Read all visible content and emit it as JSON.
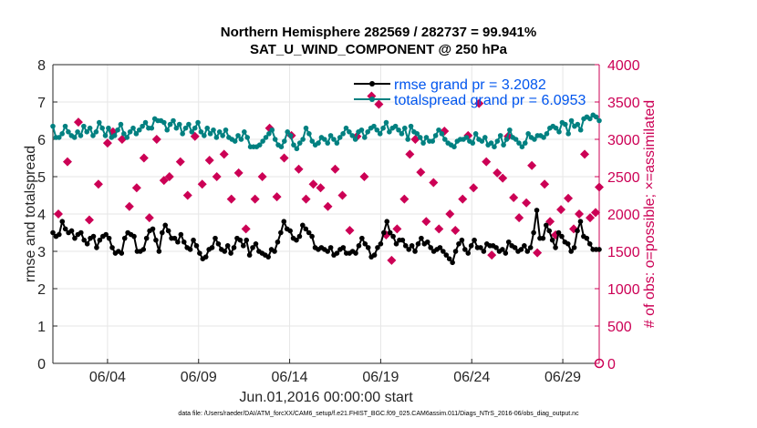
{
  "chart_data": {
    "type": "line",
    "title": [
      "Northern Hemisphere 282569 / 282737 = 99.941%",
      "SAT_U_WIND_COMPONENT @ 250 hPa"
    ],
    "xlabel": "Jun.01,2016 00:00:00 start",
    "ylabel_left": "rmse and totalspread",
    "ylabel_right": "# of obs: o=possible; ×=assimilated",
    "x_tick_labels": [
      "06/04",
      "06/09",
      "06/14",
      "06/19",
      "06/24",
      "06/29"
    ],
    "x_tick_days": [
      4,
      9,
      14,
      19,
      24,
      29
    ],
    "xlim": [
      1,
      31
    ],
    "ylim_left": [
      0,
      8
    ],
    "y_ticks_left": [
      0,
      1,
      2,
      3,
      4,
      5,
      6,
      7,
      8
    ],
    "ylim_right": [
      0,
      4000
    ],
    "y_ticks_right": [
      0,
      500,
      1000,
      1500,
      2000,
      2500,
      3000,
      3500,
      4000
    ],
    "grid": true,
    "legend_position": "top-right",
    "colors": {
      "rmse": "#000000",
      "spread": "#008080",
      "obs": "#cc0055",
      "legend_text": "#0055ee"
    },
    "series": [
      {
        "name": "rmse",
        "legend": "rmse grand pr = 3.2082",
        "values": [
          3.5,
          3.4,
          3.45,
          3.8,
          3.6,
          3.5,
          3.55,
          3.35,
          3.45,
          3.5,
          3.3,
          3.2,
          3.35,
          3.4,
          3.1,
          3.3,
          3.4,
          3.45,
          3.35,
          3.1,
          2.95,
          3.0,
          2.95,
          3.35,
          3.5,
          3.45,
          3.4,
          3.0,
          3.0,
          3.05,
          3.35,
          3.55,
          3.6,
          3.3,
          3.0,
          3.5,
          3.7,
          3.55,
          3.35,
          3.35,
          3.25,
          3.45,
          3.25,
          3.1,
          3.05,
          3.3,
          3.15,
          2.95,
          2.8,
          2.85,
          3.05,
          3.1,
          3.35,
          3.2,
          3.05,
          3.0,
          3.15,
          2.95,
          3.1,
          3.35,
          3.3,
          3.15,
          3.3,
          2.9,
          3.1,
          3.2,
          3.0,
          2.95,
          2.9,
          2.85,
          3.05,
          3.0,
          3.25,
          3.5,
          3.8,
          3.6,
          3.55,
          3.35,
          3.3,
          3.4,
          3.7,
          3.6,
          3.5,
          3.4,
          3.1,
          3.05,
          3.1,
          3.05,
          3.0,
          3.1,
          2.9,
          2.95,
          3.05,
          3.1,
          2.95,
          2.95,
          3.0,
          2.95,
          3.15,
          3.35,
          3.2,
          3.1,
          2.85,
          2.9,
          3.1,
          3.2,
          3.5,
          3.8,
          3.5,
          3.4,
          3.2,
          3.3,
          3.3,
          3.15,
          3.05,
          3.15,
          3.0,
          3.2,
          3.35,
          3.2,
          3.25,
          3.1,
          3.0,
          3.05,
          3.1,
          3.0,
          2.9,
          2.8,
          2.7,
          3.0,
          3.2,
          3.3,
          3.05,
          2.95,
          3.15,
          3.3,
          3.1,
          3.1,
          3.0,
          3.2,
          3.15,
          3.15,
          3.1,
          3.0,
          3.05,
          2.95,
          3.25,
          3.15,
          3.1,
          3.0,
          3.05,
          3.15,
          3.0,
          3.1,
          3.5,
          4.1,
          3.35,
          3.35,
          3.7,
          3.55,
          3.3,
          3.1,
          3.5,
          3.4,
          3.25,
          3.2,
          3.0,
          3.1,
          3.55,
          3.8,
          3.4,
          3.35,
          3.2,
          3.05,
          3.05,
          3.05
        ]
      },
      {
        "name": "totalspread",
        "legend": "totalspread grand pr = 6.0953",
        "values": [
          6.35,
          6.05,
          6.05,
          6.15,
          6.35,
          6.2,
          6.1,
          6.05,
          6.2,
          6.1,
          6.35,
          6.2,
          6.3,
          6.1,
          6.2,
          6.45,
          6.3,
          6.1,
          6.3,
          6.05,
          6.1,
          6.25,
          6.4,
          6.15,
          6.05,
          6.2,
          6.3,
          6.15,
          6.25,
          6.35,
          6.45,
          6.3,
          6.3,
          6.55,
          6.5,
          6.5,
          6.45,
          6.25,
          6.4,
          6.5,
          6.3,
          6.4,
          6.15,
          6.3,
          6.4,
          6.2,
          6.3,
          6.45,
          6.2,
          6.1,
          6.3,
          6.15,
          6.25,
          6.05,
          6.2,
          6.1,
          6.25,
          6.05,
          6.0,
          5.95,
          6.1,
          6.0,
          6.2,
          6.05,
          5.8,
          5.8,
          5.8,
          5.85,
          5.95,
          6.05,
          6.15,
          6.25,
          6.0,
          5.85,
          5.8,
          5.95,
          6.2,
          6.1,
          5.85,
          5.75,
          5.9,
          6.0,
          6.3,
          6.15,
          5.95,
          5.85,
          5.9,
          6.05,
          6.0,
          5.9,
          6.1,
          6.0,
          5.9,
          6.05,
          6.15,
          6.3,
          6.2,
          6.1,
          6.0,
          6.2,
          6.25,
          6.05,
          6.2,
          6.3,
          6.35,
          6.25,
          6.15,
          6.3,
          6.45,
          6.2,
          6.3,
          6.35,
          6.25,
          6.15,
          6.3,
          6.0,
          6.35,
          6.2,
          6.15,
          6.05,
          5.9,
          6.05,
          5.95,
          5.95,
          6.1,
          6.25,
          6.15,
          6.0,
          5.9,
          5.85,
          5.8,
          5.95,
          6.0,
          6.0,
          6.05,
          5.95,
          5.9,
          6.15,
          6.0,
          5.95,
          6.05,
          5.85,
          5.9,
          5.8,
          5.95,
          6.1,
          5.85,
          6.0,
          6.25,
          6.05,
          6.0,
          5.9,
          5.8,
          5.9,
          6.15,
          6.05,
          6.0,
          6.1,
          6.1,
          6.05,
          6.15,
          6.3,
          6.35,
          6.3,
          6.2,
          6.45,
          6.4,
          6.15,
          6.5,
          6.35,
          6.4,
          6.25,
          6.55,
          6.6,
          6.55,
          6.65,
          6.6,
          6.5
        ]
      },
      {
        "name": "obs_assimilated",
        "axis": "right",
        "points": [
          [
            1.3,
            2000
          ],
          [
            1.8,
            2700
          ],
          [
            2.4,
            3230
          ],
          [
            3.0,
            1920
          ],
          [
            3.5,
            2400
          ],
          [
            4.0,
            2950
          ],
          [
            4.3,
            3100
          ],
          [
            4.8,
            3000
          ],
          [
            5.2,
            2100
          ],
          [
            5.6,
            2350
          ],
          [
            6.0,
            2750
          ],
          [
            6.3,
            1950
          ],
          [
            6.7,
            3000
          ],
          [
            7.1,
            2450
          ],
          [
            7.4,
            2500
          ],
          [
            8.0,
            2700
          ],
          [
            8.4,
            2250
          ],
          [
            8.8,
            3040
          ],
          [
            9.2,
            2400
          ],
          [
            9.6,
            2720
          ],
          [
            10.0,
            2500
          ],
          [
            10.4,
            2800
          ],
          [
            10.8,
            2200
          ],
          [
            11.2,
            2550
          ],
          [
            11.6,
            1800
          ],
          [
            12.1,
            2200
          ],
          [
            12.5,
            2500
          ],
          [
            12.9,
            3150
          ],
          [
            13.3,
            2230
          ],
          [
            13.7,
            2750
          ],
          [
            14.1,
            3050
          ],
          [
            14.5,
            2600
          ],
          [
            14.9,
            2200
          ],
          [
            15.3,
            2400
          ],
          [
            15.7,
            2350
          ],
          [
            16.1,
            2100
          ],
          [
            16.5,
            2600
          ],
          [
            16.9,
            2250
          ],
          [
            17.3,
            1780
          ],
          [
            17.7,
            3040
          ],
          [
            18.1,
            2500
          ],
          [
            18.5,
            3580
          ],
          [
            18.9,
            3470
          ],
          [
            19.3,
            1720
          ],
          [
            19.6,
            1380
          ],
          [
            19.9,
            1800
          ],
          [
            20.3,
            2200
          ],
          [
            20.6,
            2800
          ],
          [
            20.9,
            3000
          ],
          [
            21.2,
            2560
          ],
          [
            21.5,
            1900
          ],
          [
            21.9,
            2420
          ],
          [
            22.2,
            1800
          ],
          [
            22.5,
            3110
          ],
          [
            22.8,
            2000
          ],
          [
            23.1,
            1780
          ],
          [
            23.5,
            2200
          ],
          [
            23.8,
            3050
          ],
          [
            24.1,
            2350
          ],
          [
            24.4,
            3480
          ],
          [
            24.8,
            2700
          ],
          [
            25.1,
            1450
          ],
          [
            25.4,
            2550
          ],
          [
            25.7,
            2480
          ],
          [
            26.0,
            3040
          ],
          [
            26.3,
            2220
          ],
          [
            26.6,
            1950
          ],
          [
            27.0,
            2150
          ],
          [
            27.3,
            2650
          ],
          [
            27.6,
            1480
          ],
          [
            28.0,
            2400
          ],
          [
            28.3,
            1900
          ],
          [
            28.6,
            1720
          ],
          [
            28.9,
            2060
          ],
          [
            29.3,
            2210
          ],
          [
            29.6,
            1800
          ],
          [
            29.9,
            2000
          ],
          [
            30.2,
            2800
          ],
          [
            30.5,
            1950
          ],
          [
            30.8,
            2020
          ],
          [
            31.0,
            2360
          ]
        ]
      },
      {
        "name": "obs_possible",
        "axis": "right",
        "points": [
          [
            31.0,
            0
          ]
        ]
      }
    ]
  },
  "footnote": "data file: /Users/raeder/DAI/ATM_forcXX/CAM6_setup/f.e21.FHIST_BGC.f09_025.CAM6assim.011/Diags_NTrS_2016-06/obs_diag_output.nc"
}
